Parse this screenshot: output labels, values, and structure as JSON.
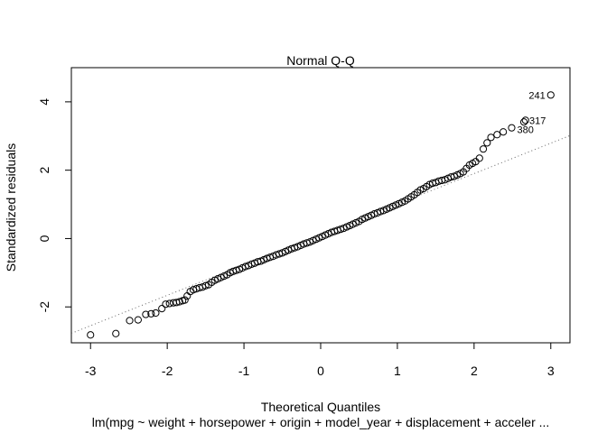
{
  "chart_data": {
    "type": "scatter",
    "title": "Normal Q-Q",
    "xlabel": "Theoretical Quantiles",
    "ylabel": "Standardized residuals",
    "caption": "lm(mpg ~ weight + horsepower + origin + model_year + displacement + acceler ...",
    "xlim": [
      -3.25,
      3.25
    ],
    "ylim": [
      -3.05,
      5.0
    ],
    "xticks": [
      -3,
      -2,
      -1,
      0,
      1,
      2,
      3
    ],
    "xtick_labels": [
      "-3",
      "-2",
      "-1",
      "0",
      "1",
      "2",
      "3"
    ],
    "yticks": [
      -2,
      0,
      2,
      4
    ],
    "ytick_labels": [
      "-2",
      "0",
      "2",
      "4"
    ],
    "grid": false,
    "legend": "none",
    "reference_line": {
      "slope": 0.89,
      "intercept": 0.12
    },
    "series": [
      {
        "x": [
          -3.0,
          -2.67,
          -2.49,
          -2.38,
          -2.28,
          -2.21,
          -2.15,
          -2.07,
          -2.02,
          -1.97,
          -1.92,
          -1.88,
          -1.84,
          -1.8,
          -1.77,
          -1.74,
          -1.7,
          -1.66,
          -1.62,
          -1.58,
          -1.54,
          -1.5,
          -1.46,
          -1.42,
          -1.38,
          -1.34,
          -1.3,
          -1.26,
          -1.22,
          -1.18,
          -1.14,
          -1.1,
          -1.06,
          -1.02,
          -0.98,
          -0.94,
          -0.9,
          -0.86,
          -0.82,
          -0.78,
          -0.74,
          -0.7,
          -0.66,
          -0.62,
          -0.58,
          -0.54,
          -0.5,
          -0.46,
          -0.42,
          -0.38,
          -0.34,
          -0.3,
          -0.26,
          -0.22,
          -0.18,
          -0.14,
          -0.1,
          -0.06,
          -0.02,
          0.02,
          0.06,
          0.1,
          0.14,
          0.18,
          0.22,
          0.26,
          0.3,
          0.34,
          0.38,
          0.42,
          0.46,
          0.5,
          0.54,
          0.58,
          0.62,
          0.66,
          0.7,
          0.74,
          0.78,
          0.82,
          0.86,
          0.9,
          0.94,
          0.98,
          1.02,
          1.06,
          1.1,
          1.14,
          1.18,
          1.22,
          1.26,
          1.3,
          1.34,
          1.38,
          1.42,
          1.46,
          1.5,
          1.54,
          1.58,
          1.62,
          1.66,
          1.7,
          1.74,
          1.78,
          1.82,
          1.86,
          1.9,
          1.94,
          1.98,
          2.02,
          2.07,
          2.12,
          2.17,
          2.22,
          2.3,
          2.38,
          2.49,
          2.65,
          2.67,
          3.0
        ],
        "y": [
          -2.82,
          -2.78,
          -2.4,
          -2.38,
          -2.22,
          -2.2,
          -2.18,
          -2.05,
          -1.92,
          -1.9,
          -1.88,
          -1.87,
          -1.85,
          -1.82,
          -1.8,
          -1.68,
          -1.55,
          -1.5,
          -1.47,
          -1.44,
          -1.42,
          -1.38,
          -1.35,
          -1.28,
          -1.22,
          -1.18,
          -1.14,
          -1.1,
          -1.06,
          -1.0,
          -0.96,
          -0.93,
          -0.9,
          -0.86,
          -0.82,
          -0.79,
          -0.75,
          -0.72,
          -0.68,
          -0.66,
          -0.62,
          -0.58,
          -0.55,
          -0.52,
          -0.48,
          -0.45,
          -0.42,
          -0.38,
          -0.34,
          -0.3,
          -0.27,
          -0.24,
          -0.2,
          -0.16,
          -0.13,
          -0.1,
          -0.06,
          -0.02,
          0.02,
          0.06,
          0.1,
          0.14,
          0.18,
          0.21,
          0.24,
          0.27,
          0.3,
          0.34,
          0.38,
          0.42,
          0.46,
          0.5,
          0.56,
          0.6,
          0.64,
          0.68,
          0.72,
          0.75,
          0.79,
          0.82,
          0.86,
          0.9,
          0.94,
          0.98,
          1.02,
          1.06,
          1.1,
          1.16,
          1.22,
          1.28,
          1.35,
          1.42,
          1.46,
          1.52,
          1.58,
          1.62,
          1.64,
          1.68,
          1.7,
          1.72,
          1.76,
          1.8,
          1.82,
          1.86,
          1.9,
          1.95,
          2.05,
          2.15,
          2.2,
          2.25,
          2.35,
          2.62,
          2.8,
          2.96,
          3.04,
          3.12,
          3.24,
          3.41,
          3.46,
          4.2
        ],
        "labels": [
          {
            "x": 3.0,
            "y": 4.2,
            "text": "241"
          },
          {
            "x": 2.65,
            "y": 3.46,
            "text": "317"
          },
          {
            "x": 2.49,
            "y": 3.24,
            "text": "380"
          }
        ]
      }
    ]
  }
}
